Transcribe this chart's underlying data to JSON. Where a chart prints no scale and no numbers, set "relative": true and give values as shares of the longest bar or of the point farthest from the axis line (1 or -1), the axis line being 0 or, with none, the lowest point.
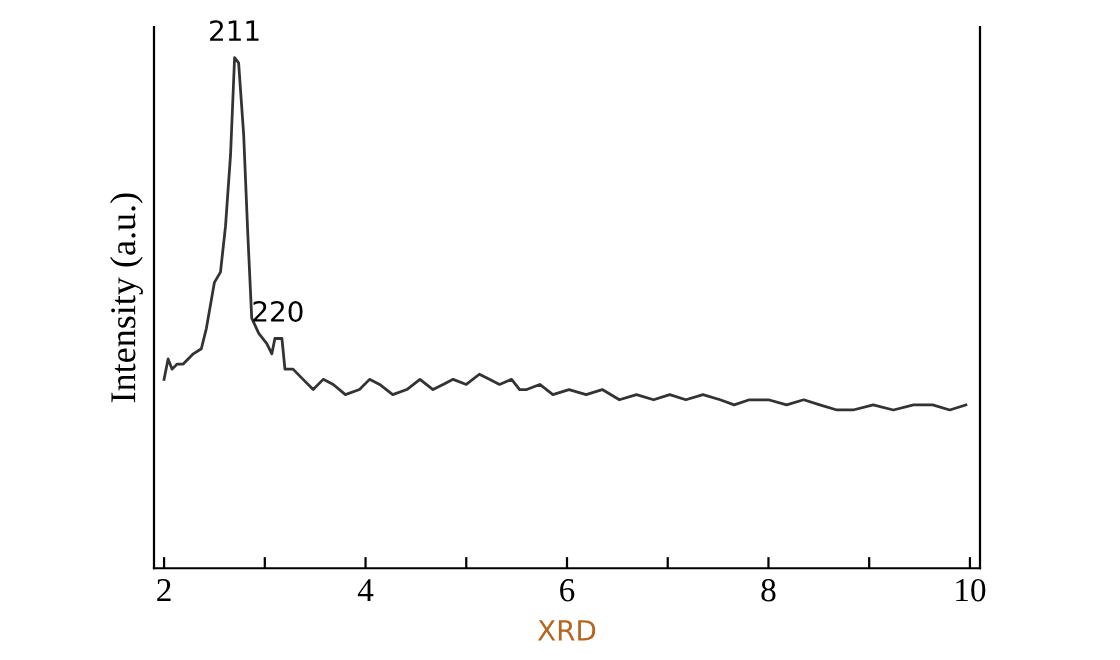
{
  "chart_data": {
    "type": "line",
    "relative": true,
    "xlabel": "XRD",
    "ylabel": "Intensity (a.u.)",
    "xlim": [
      1.9,
      10.1
    ],
    "xticks": [
      2,
      {
        "value": 3,
        "label": null
      },
      4,
      {
        "value": 5,
        "label": null
      },
      6,
      {
        "value": 7,
        "label": null
      },
      8,
      {
        "value": 9,
        "label": null
      },
      10
    ],
    "series": [
      {
        "color": "#333333",
        "x": [
          2.0,
          2.04,
          2.08,
          2.13,
          2.19,
          2.29,
          2.37,
          2.42,
          2.5,
          2.56,
          2.61,
          2.66,
          2.7,
          2.74,
          2.79,
          2.83,
          2.87,
          2.94,
          3.02,
          3.07,
          3.1,
          3.17,
          3.2,
          3.28,
          3.38,
          3.48,
          3.58,
          3.68,
          3.8,
          3.94,
          4.04,
          4.14,
          4.27,
          4.41,
          4.54,
          4.67,
          4.77,
          4.87,
          5.0,
          5.13,
          5.23,
          5.33,
          5.45,
          5.53,
          5.6,
          5.73,
          5.86,
          6.02,
          6.19,
          6.35,
          6.52,
          6.69,
          6.86,
          7.02,
          7.18,
          7.35,
          7.52,
          7.66,
          7.81,
          8.0,
          8.18,
          8.35,
          8.51,
          8.68,
          8.84,
          9.04,
          9.24,
          9.44,
          9.63,
          9.8,
          9.96
        ],
        "values": [
          0.37,
          0.41,
          0.39,
          0.4,
          0.4,
          0.42,
          0.43,
          0.47,
          0.56,
          0.58,
          0.67,
          0.81,
          1.0,
          0.99,
          0.85,
          0.66,
          0.49,
          0.46,
          0.44,
          0.42,
          0.45,
          0.45,
          0.39,
          0.39,
          0.37,
          0.35,
          0.37,
          0.36,
          0.34,
          0.35,
          0.37,
          0.36,
          0.34,
          0.35,
          0.37,
          0.35,
          0.36,
          0.37,
          0.36,
          0.38,
          0.37,
          0.36,
          0.37,
          0.35,
          0.35,
          0.36,
          0.34,
          0.35,
          0.34,
          0.35,
          0.33,
          0.34,
          0.33,
          0.34,
          0.33,
          0.34,
          0.33,
          0.32,
          0.33,
          0.33,
          0.32,
          0.33,
          0.32,
          0.31,
          0.31,
          0.32,
          0.31,
          0.32,
          0.32,
          0.31,
          0.32
        ]
      }
    ],
    "annotations": [
      {
        "text": "211",
        "x": 2.7,
        "y": 1.0
      },
      {
        "text": "220",
        "x": 3.13,
        "y": 0.45
      }
    ]
  }
}
